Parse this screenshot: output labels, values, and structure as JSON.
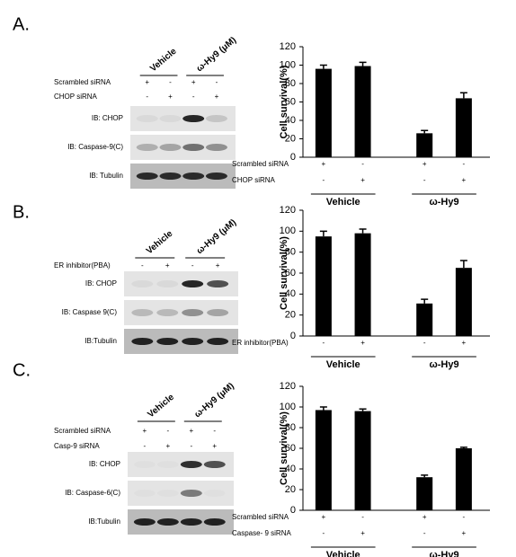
{
  "panels": [
    {
      "label": "A."
    },
    {
      "label": "B."
    },
    {
      "label": "C."
    }
  ],
  "blots": [
    {
      "groups": [
        "Vehicle",
        "ω-Hy9 (μM)"
      ],
      "conditions": [
        {
          "name": "Scrambled siRNA",
          "signs": [
            "+",
            "-",
            "+",
            "-"
          ]
        },
        {
          "name": "CHOP siRNA",
          "signs": [
            "-",
            "+",
            "-",
            "+"
          ]
        }
      ],
      "bands": [
        "IB: CHOP",
        "IB:  Caspase-9(C)",
        "IB: Tubulin"
      ]
    },
    {
      "groups": [
        "Vehicle",
        "ω-Hy9 (μM)"
      ],
      "conditions": [
        {
          "name": "ER inhibitor(PBA)",
          "signs": [
            "-",
            "+",
            "-",
            "+"
          ]
        }
      ],
      "bands": [
        "IB: CHOP",
        "IB: Caspase 9(C)",
        "IB:Tubulin"
      ]
    },
    {
      "groups": [
        "Vehicle",
        "ω-Hy9 (μM)"
      ],
      "conditions": [
        {
          "name": "Scrambled siRNA",
          "signs": [
            "+",
            "-",
            "+",
            "-"
          ]
        },
        {
          "name": "Casp-9 siRNA",
          "signs": [
            "-",
            "+",
            "-",
            "+"
          ]
        }
      ],
      "bands": [
        "IB: CHOP",
        "IB: Caspase-6(C)",
        "IB:Tubulin"
      ]
    }
  ],
  "chart_data": [
    {
      "type": "bar",
      "ylabel": "Cell survival(%)",
      "values": [
        96,
        99,
        26,
        64
      ],
      "errors": [
        4,
        4,
        3,
        6
      ],
      "color": "#000000",
      "ylim": [
        0,
        120
      ],
      "yticks": [
        0,
        20,
        40,
        60,
        80,
        100,
        120
      ],
      "conditions": [
        {
          "name": "Scrambled siRNA",
          "signs": [
            "+",
            "-",
            "+",
            "-"
          ]
        },
        {
          "name": "CHOP siRNA",
          "signs": [
            "-",
            "+",
            "-",
            "+"
          ]
        }
      ],
      "groups": [
        "Vehicle",
        "ω-Hy9"
      ]
    },
    {
      "type": "bar",
      "ylabel": "Cell survival(%)",
      "values": [
        95,
        98,
        31,
        65
      ],
      "errors": [
        5,
        4,
        4,
        7
      ],
      "color": "#000000",
      "ylim": [
        0,
        120
      ],
      "yticks": [
        0,
        20,
        40,
        60,
        80,
        100,
        120
      ],
      "conditions": [
        {
          "name": "ER inhibitor(PBA)",
          "signs": [
            "-",
            "+",
            "-",
            "+"
          ]
        }
      ],
      "groups": [
        "Vehicle",
        "ω-Hy9"
      ]
    },
    {
      "type": "bar",
      "ylabel": "Cell survival(%)",
      "values": [
        97,
        96,
        32,
        60
      ],
      "errors": [
        3,
        2,
        2,
        1
      ],
      "color": "#000000",
      "ylim": [
        0,
        120
      ],
      "yticks": [
        0,
        20,
        40,
        60,
        80,
        100,
        120
      ],
      "conditions": [
        {
          "name": "Scrambled siRNA",
          "signs": [
            "+",
            "-",
            "+",
            "-"
          ]
        },
        {
          "name": "Caspase- 9 siRNA",
          "signs": [
            "-",
            "+",
            "-",
            "+"
          ]
        }
      ],
      "groups": [
        "Vehicle",
        "ω-Hy9"
      ]
    }
  ]
}
